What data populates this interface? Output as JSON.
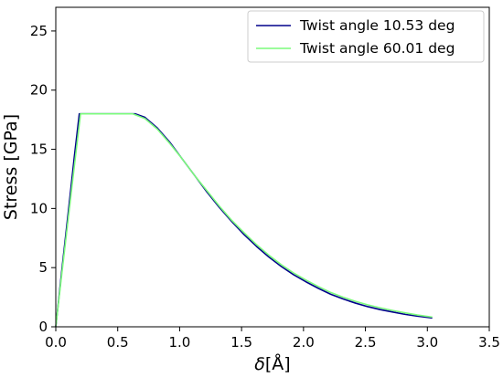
{
  "chart_data": {
    "type": "line",
    "xlabel_italic": "δ",
    "xlabel_unit": "[Å]",
    "ylabel": "Stress [GPa]",
    "xlim": [
      0.0,
      3.5
    ],
    "ylim": [
      0,
      27
    ],
    "xticks": [
      "0.0",
      "0.5",
      "1.0",
      "1.5",
      "2.0",
      "2.5",
      "3.0",
      "3.5"
    ],
    "yticks": [
      "0",
      "5",
      "10",
      "15",
      "20",
      "25"
    ],
    "grid": false,
    "legend_position": "top-right",
    "series": [
      {
        "name": "Twist angle 10.53 deg",
        "color": "#00008b",
        "x": [
          0.0,
          0.05,
          0.1,
          0.15,
          0.19,
          0.3,
          0.4,
          0.5,
          0.6,
          0.64,
          0.72,
          0.82,
          0.92,
          1.02,
          1.12,
          1.22,
          1.32,
          1.42,
          1.52,
          1.62,
          1.72,
          1.82,
          1.92,
          2.02,
          2.12,
          2.22,
          2.32,
          2.42,
          2.52,
          2.62,
          2.72,
          2.82,
          2.92,
          3.04
        ],
        "y": [
          0.0,
          4.9,
          9.6,
          14.4,
          18.0,
          18.0,
          18.0,
          18.0,
          18.0,
          18.0,
          17.7,
          16.8,
          15.6,
          14.2,
          12.8,
          11.4,
          10.1,
          8.9,
          7.8,
          6.8,
          5.9,
          5.1,
          4.4,
          3.8,
          3.25,
          2.75,
          2.35,
          2.0,
          1.7,
          1.45,
          1.25,
          1.05,
          0.9,
          0.75
        ]
      },
      {
        "name": "Twist angle 60.01 deg",
        "color": "#7cfc7c",
        "x": [
          0.0,
          0.05,
          0.1,
          0.15,
          0.2,
          0.3,
          0.4,
          0.5,
          0.6,
          0.62,
          0.72,
          0.82,
          0.92,
          1.02,
          1.12,
          1.22,
          1.32,
          1.42,
          1.52,
          1.62,
          1.72,
          1.82,
          1.92,
          2.02,
          2.12,
          2.22,
          2.32,
          2.42,
          2.52,
          2.62,
          2.72,
          2.82,
          2.92,
          3.04
        ],
        "y": [
          0.0,
          4.6,
          9.1,
          13.6,
          18.0,
          18.0,
          18.0,
          18.0,
          18.0,
          18.0,
          17.6,
          16.7,
          15.5,
          14.2,
          12.8,
          11.5,
          10.2,
          9.0,
          7.95,
          6.95,
          6.05,
          5.25,
          4.55,
          3.95,
          3.4,
          2.9,
          2.5,
          2.15,
          1.85,
          1.6,
          1.38,
          1.18,
          1.0,
          0.82
        ]
      }
    ]
  }
}
